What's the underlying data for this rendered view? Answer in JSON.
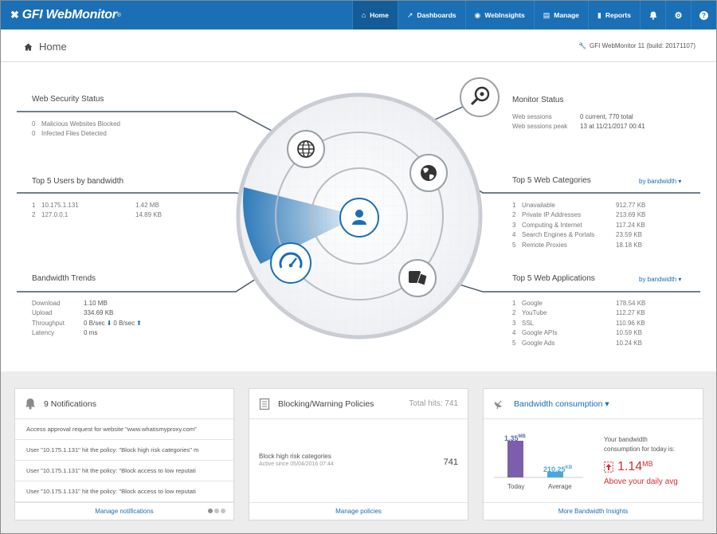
{
  "app": {
    "logo_mark": "✖",
    "logo_text": "GFI WebMonitor",
    "logo_tm": "®"
  },
  "nav": {
    "items": [
      {
        "label": "Home",
        "icon": "home-icon",
        "glyph": "⌂",
        "active": true
      },
      {
        "label": "Dashboards",
        "icon": "chart-icon",
        "glyph": "↗"
      },
      {
        "label": "WebInsights",
        "icon": "eye-icon",
        "glyph": "◉"
      },
      {
        "label": "Manage",
        "icon": "clipboard-icon",
        "glyph": "▤"
      },
      {
        "label": "Reports",
        "icon": "bar-chart-icon",
        "glyph": "▮"
      }
    ],
    "icons": [
      {
        "name": "bell-icon",
        "glyph": "🔔"
      },
      {
        "name": "gear-icon",
        "glyph": "⚙"
      },
      {
        "name": "help-icon",
        "glyph": "?"
      }
    ]
  },
  "header": {
    "title": "Home",
    "build": "GFI WebMonitor 11 (build: 20171107)"
  },
  "web_security": {
    "title": "Web Security Status",
    "rows": [
      {
        "num": "0",
        "label": "Malicious Websites Blocked"
      },
      {
        "num": "0",
        "label": "Infected Files Detected"
      }
    ]
  },
  "top_users": {
    "title": "Top 5 Users by bandwidth",
    "rows": [
      {
        "rank": "1",
        "name": "10.175.1.131",
        "value": "1.42 MB"
      },
      {
        "rank": "2",
        "name": "127.0.0.1",
        "value": "14.89 KB"
      }
    ]
  },
  "bandwidth_trends": {
    "title": "Bandwidth Trends",
    "rows": [
      {
        "label": "Download",
        "value": "1.10 MB"
      },
      {
        "label": "Upload",
        "value": "334.69 KB"
      },
      {
        "label": "Throughput",
        "value_down": "0 B/sec",
        "value_up": "0 B/sec"
      },
      {
        "label": "Latency",
        "value": "0 ms"
      }
    ]
  },
  "monitor_status": {
    "title": "Monitor Status",
    "rows": [
      {
        "label": "Web sessions",
        "value": "0 current, 770 total"
      },
      {
        "label": "Web sessions peak",
        "value": "13 at 11/21/2017 00:41"
      }
    ]
  },
  "top_categories": {
    "title": "Top 5 Web Categories",
    "sort_label": "by bandwidth ▾",
    "rows": [
      {
        "rank": "1",
        "name": "Unavailable",
        "value": "912.77 KB"
      },
      {
        "rank": "2",
        "name": "Private IP Addresses",
        "value": "213.69 KB"
      },
      {
        "rank": "3",
        "name": "Computing & Internet",
        "value": "117.24 KB"
      },
      {
        "rank": "4",
        "name": "Search Engines & Portals",
        "value": "23.59 KB"
      },
      {
        "rank": "5",
        "name": "Remote Proxies",
        "value": "18.18 KB"
      }
    ]
  },
  "top_apps": {
    "title": "Top 5 Web Applications",
    "sort_label": "by bandwidth ▾",
    "rows": [
      {
        "rank": "1",
        "name": "Google",
        "value": "178.54 KB"
      },
      {
        "rank": "2",
        "name": "YouTube",
        "value": "112.27 KB"
      },
      {
        "rank": "3",
        "name": "SSL",
        "value": "110.96 KB"
      },
      {
        "rank": "4",
        "name": "Google APIs",
        "value": "10.59 KB"
      },
      {
        "rank": "5",
        "name": "Google Ads",
        "value": "10.24 KB"
      }
    ]
  },
  "notifications": {
    "title": "9 Notifications",
    "items": [
      "Access approval request for website \"www.whatismyproxy.com\"",
      "User \"10.175.1.131\" hit the policy: \"Block high risk categories\" m",
      "User \"10.175.1.131\" hit the policy: \"Block access to low reputati",
      "User \"10.175.1.131\" hit the policy: \"Block access to low reputati"
    ],
    "footer": "Manage notifications"
  },
  "policies": {
    "title": "Blocking/Warning Policies",
    "total_label": "Total hits: 741",
    "policy_name": "Block high risk categories",
    "policy_since": "Active since 05/04/2016 07:44",
    "policy_hits": "741",
    "footer": "Manage policies"
  },
  "bandwidth": {
    "title": "Bandwidth consumption ▾",
    "today_value": "1.35",
    "today_unit": "MB",
    "avg_value": "210.25",
    "avg_unit": "KB",
    "today_label": "Today",
    "avg_label": "Average",
    "summary_line1": "Your bandwidth",
    "summary_line2": "consumption for today is:",
    "big_value": "1.14",
    "big_unit": "MB",
    "above_text": "Above your daily avg",
    "footer": "More Bandwidth Insights",
    "colors": {
      "today": "#7b5fae",
      "average": "#4aa6df",
      "alert": "#d32f2f"
    }
  },
  "colors": {
    "brand": "#1a6fb5",
    "nav_active": "#145c98",
    "line": "#445566"
  }
}
